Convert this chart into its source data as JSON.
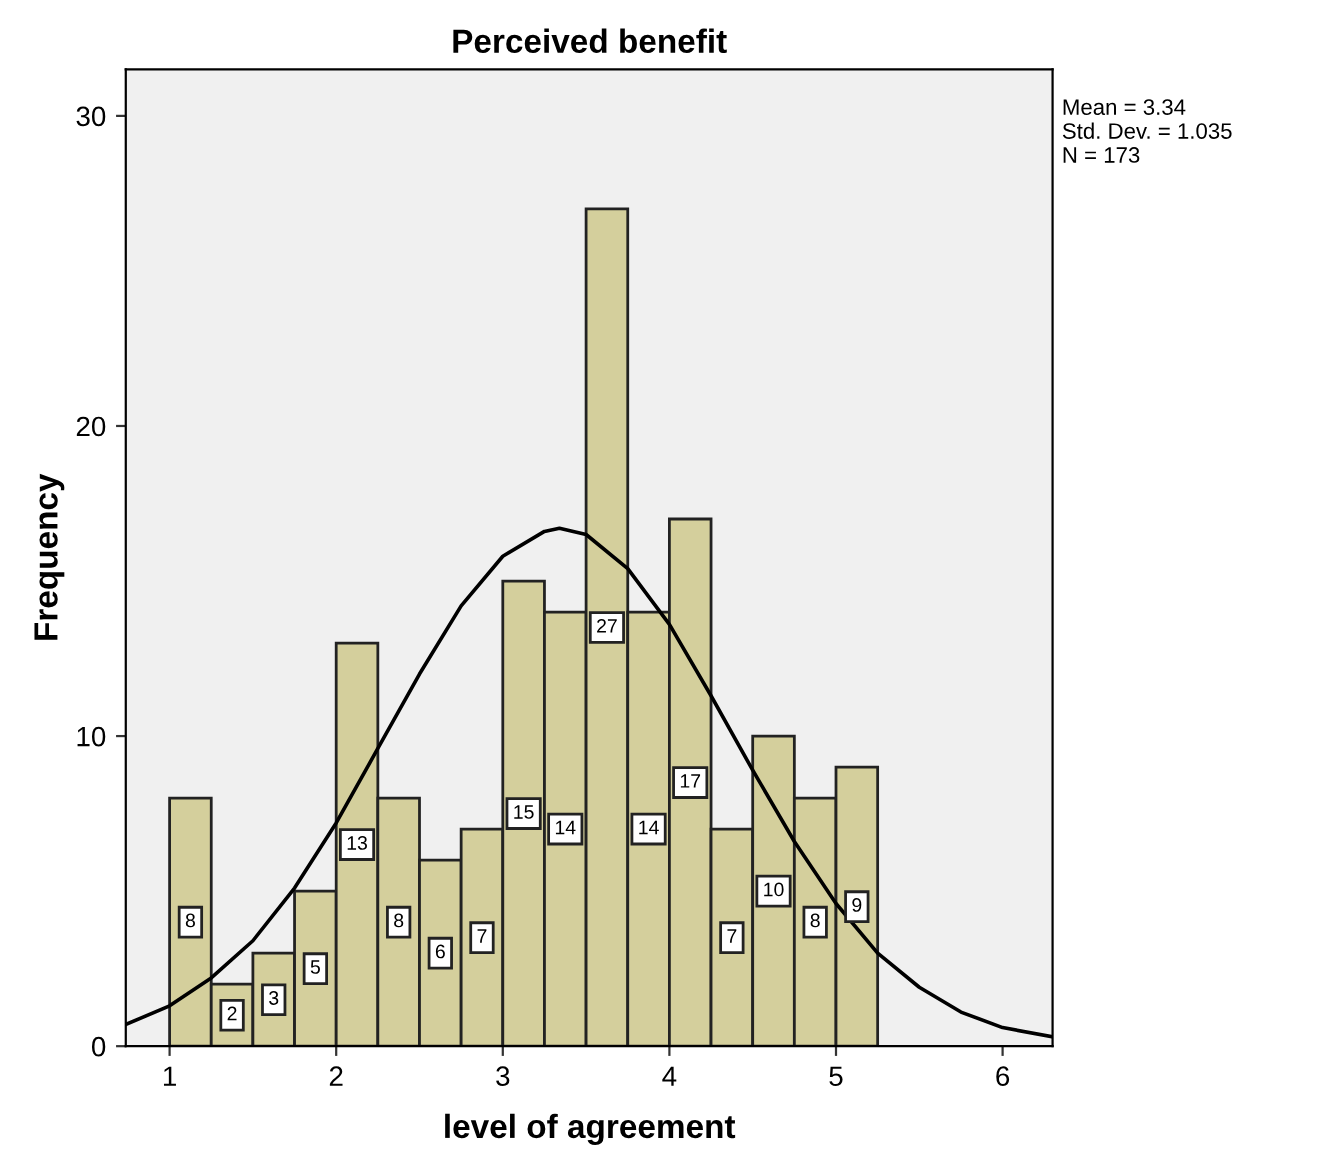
{
  "chart_data": {
    "type": "histogram",
    "title": "Perceived benefit",
    "xlabel": "level of agreement",
    "ylabel": "Frequency",
    "bins": [
      1.0,
      1.25,
      1.5,
      1.75,
      2.0,
      2.25,
      2.5,
      2.75,
      3.0,
      3.25,
      3.5,
      3.75,
      4.0,
      4.25,
      4.5,
      4.75,
      5.0,
      5.25
    ],
    "values": [
      8,
      2,
      3,
      5,
      13,
      8,
      6,
      7,
      15,
      14,
      27,
      14,
      17,
      7,
      10,
      8,
      9
    ],
    "color": "#d4cf9c",
    "value_labels": [
      "8",
      "2",
      "3",
      "5",
      "13",
      "8",
      "6",
      "7",
      "15",
      "14",
      "27",
      "14",
      "17",
      "7",
      "10",
      "8",
      "9"
    ],
    "series": [
      {
        "type": "line",
        "color": "#000000",
        "x": [
          0.737,
          1.0,
          1.25,
          1.5,
          1.75,
          2.0,
          2.25,
          2.5,
          2.75,
          3.0,
          3.25,
          3.34,
          3.5,
          3.75,
          4.0,
          4.25,
          4.5,
          4.75,
          5.0,
          5.25,
          5.5,
          5.75,
          6.0,
          6.3
        ],
        "values": [
          0.7,
          1.3,
          2.2,
          3.4,
          5.1,
          7.2,
          9.6,
          12.0,
          14.2,
          15.8,
          16.6,
          16.7,
          16.5,
          15.4,
          13.6,
          11.3,
          8.9,
          6.6,
          4.6,
          3.0,
          1.9,
          1.1,
          0.6,
          0.3
        ]
      }
    ],
    "xlim": [
      0.737,
      6.3
    ],
    "xticks": [
      1,
      2,
      3,
      4,
      5,
      6
    ],
    "ylim": [
      0,
      31.5
    ],
    "yticks": [
      0,
      10,
      20,
      30
    ],
    "grid": false,
    "legend": false,
    "annotations": [
      "Mean = 3.34\nStd. Dev. = 1.035\nN = 173"
    ]
  }
}
